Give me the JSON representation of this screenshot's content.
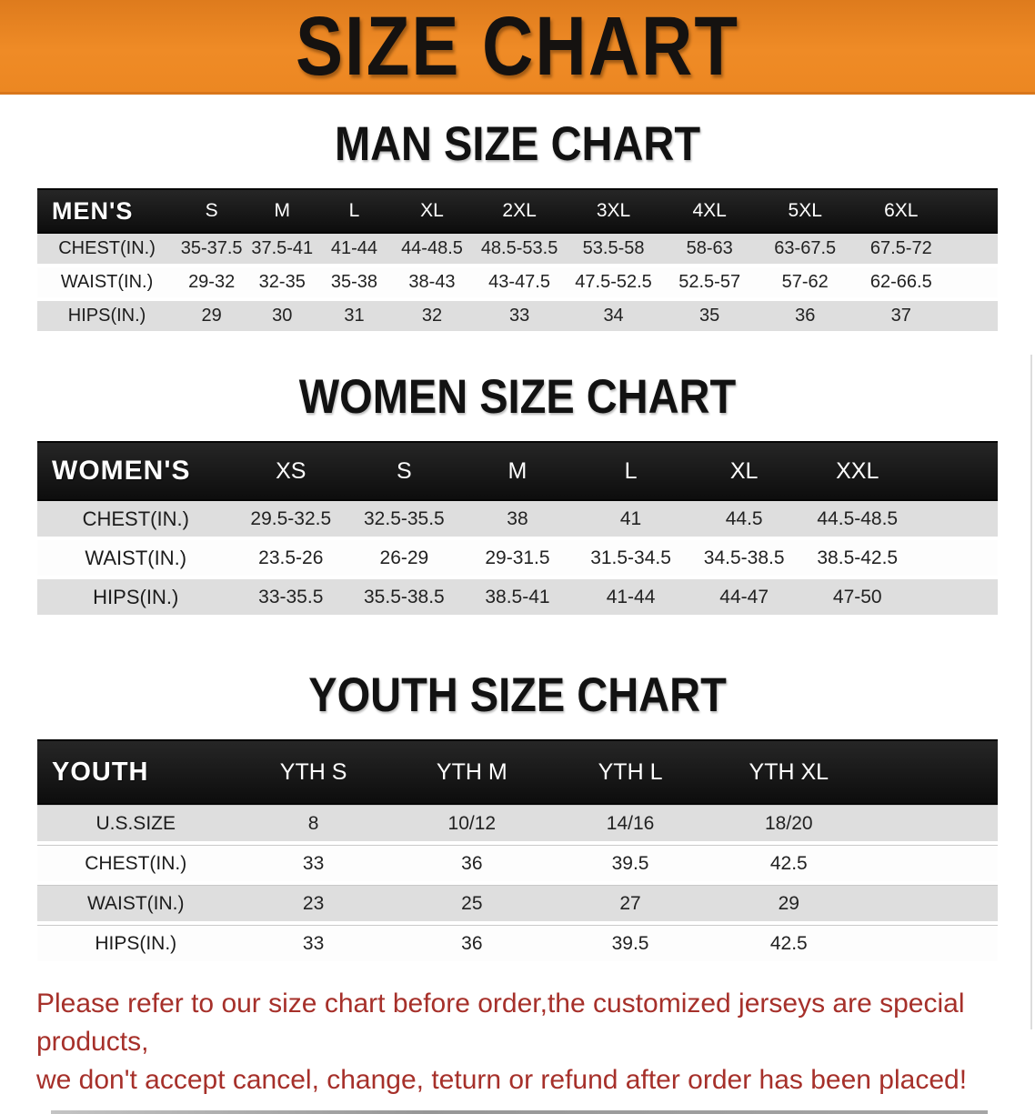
{
  "page": {
    "banner_title": "SIZE CHART",
    "footer_lines": [
      "Please refer to our size chart before order,the customized jerseys are special products,",
      "we don't accept cancel, change, teturn or refund after order has been placed!"
    ]
  },
  "colors": {
    "banner_orange": "#ee8a25",
    "banner_border": "#d9771b",
    "table_header_black": "#171717",
    "row_gray": "#dedede",
    "row_white": "#fdfdfd",
    "footer_red": "#a6302a"
  },
  "sections": [
    {
      "heading": "MAN SIZE CHART",
      "table": {
        "label": "MEN'S",
        "columns": [
          "S",
          "M",
          "L",
          "XL",
          "2XL",
          "3XL",
          "4XL",
          "5XL",
          "6XL"
        ],
        "rows": [
          {
            "label": "CHEST(IN.)",
            "values": [
              "35-37.5",
              "37.5-41",
              "41-44",
              "44-48.5",
              "48.5-53.5",
              "53.5-58",
              "58-63",
              "63-67.5",
              "67.5-72"
            ]
          },
          {
            "label": "WAIST(IN.)",
            "values": [
              "29-32",
              "32-35",
              "35-38",
              "38-43",
              "43-47.5",
              "47.5-52.5",
              "52.5-57",
              "57-62",
              "62-66.5"
            ]
          },
          {
            "label": "HIPS(IN.)",
            "values": [
              "29",
              "30",
              "31",
              "32",
              "33",
              "34",
              "35",
              "36",
              "37"
            ]
          }
        ]
      }
    },
    {
      "heading": "WOMEN SIZE CHART",
      "table": {
        "label": "WOMEN'S",
        "columns": [
          "XS",
          "S",
          "M",
          "L",
          "XL",
          "XXL"
        ],
        "rows": [
          {
            "label": "CHEST(IN.)",
            "values": [
              "29.5-32.5",
              "32.5-35.5",
              "38",
              "41",
              "44.5",
              "44.5-48.5"
            ]
          },
          {
            "label": "WAIST(IN.)",
            "values": [
              "23.5-26",
              "26-29",
              "29-31.5",
              "31.5-34.5",
              "34.5-38.5",
              "38.5-42.5"
            ]
          },
          {
            "label": "HIPS(IN.)",
            "values": [
              "33-35.5",
              "35.5-38.5",
              "38.5-41",
              "41-44",
              "44-47",
              "47-50"
            ]
          }
        ]
      }
    },
    {
      "heading": "YOUTH SIZE CHART",
      "table": {
        "label": "YOUTH",
        "columns": [
          "YTH S",
          "YTH M",
          "YTH L",
          "YTH XL"
        ],
        "rows": [
          {
            "label": "U.S.SIZE",
            "values": [
              "8",
              "10/12",
              "14/16",
              "18/20"
            ]
          },
          {
            "label": "CHEST(IN.)",
            "values": [
              "33",
              "36",
              "39.5",
              "42.5"
            ]
          },
          {
            "label": "WAIST(IN.)",
            "values": [
              "23",
              "25",
              "27",
              "29"
            ]
          },
          {
            "label": "HIPS(IN.)",
            "values": [
              "33",
              "36",
              "39.5",
              "42.5"
            ]
          }
        ]
      }
    }
  ]
}
